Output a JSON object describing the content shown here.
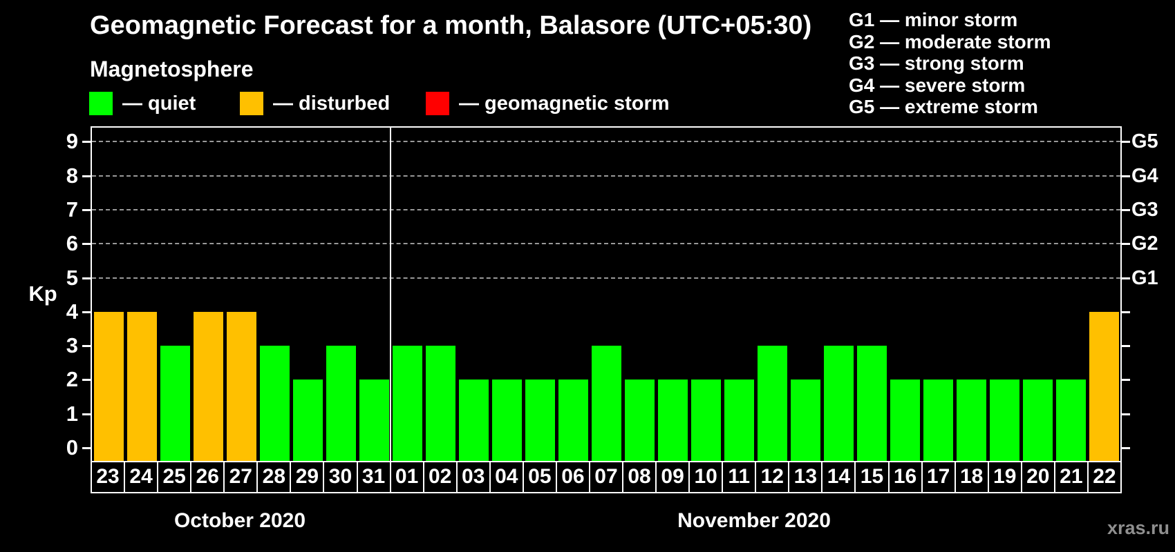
{
  "header": {
    "title": "Geomagnetic Forecast for a month, Balasore (UTC+05:30)",
    "subtitle": "Magnetosphere"
  },
  "legend": [
    {
      "label": "— quiet",
      "status": "quiet",
      "color": "#00ff00"
    },
    {
      "label": "— disturbed",
      "status": "disturbed",
      "color": "#ffc000"
    },
    {
      "label": "— geomagnetic storm",
      "status": "storm",
      "color": "#ff0000"
    }
  ],
  "storm_scale": [
    "G1 — minor storm",
    "G2 — moderate storm",
    "G3 — strong storm",
    "G4 — severe storm",
    "G5 — extreme storm"
  ],
  "axes": {
    "kp_label": "Kp",
    "y_ticks": [
      "0",
      "1",
      "2",
      "3",
      "4",
      "5",
      "6",
      "7",
      "8",
      "9"
    ],
    "right_labels": [
      "G1",
      "G2",
      "G3",
      "G4",
      "G5"
    ]
  },
  "months": [
    {
      "label": "October 2020",
      "days": 9
    },
    {
      "label": "November 2020",
      "days": 22
    }
  ],
  "watermark": "xras.ru",
  "chart_data": {
    "type": "bar",
    "title": "Geomagnetic Forecast for a month, Balasore (UTC+05:30)",
    "subtitle": "Magnetosphere",
    "ylabel": "Kp",
    "ylim": [
      0,
      9
    ],
    "grid": "dashed horizontal at Kp 5-9 (G1-G5 levels)",
    "gridlines": [
      5,
      6,
      7,
      8,
      9
    ],
    "legend_position": "top-left",
    "categories": [
      "23",
      "24",
      "25",
      "26",
      "27",
      "28",
      "29",
      "30",
      "31",
      "01",
      "02",
      "03",
      "04",
      "05",
      "06",
      "07",
      "08",
      "09",
      "10",
      "11",
      "12",
      "13",
      "14",
      "15",
      "16",
      "17",
      "18",
      "19",
      "20",
      "21",
      "22"
    ],
    "values": [
      4,
      4,
      3,
      4,
      4,
      3,
      2,
      3,
      2,
      3,
      3,
      2,
      2,
      2,
      2,
      3,
      2,
      2,
      2,
      2,
      3,
      2,
      3,
      3,
      2,
      2,
      2,
      2,
      2,
      2,
      4
    ],
    "statuses": [
      "disturbed",
      "disturbed",
      "quiet",
      "disturbed",
      "disturbed",
      "quiet",
      "quiet",
      "quiet",
      "quiet",
      "quiet",
      "quiet",
      "quiet",
      "quiet",
      "quiet",
      "quiet",
      "quiet",
      "quiet",
      "quiet",
      "quiet",
      "quiet",
      "quiet",
      "quiet",
      "quiet",
      "quiet",
      "quiet",
      "quiet",
      "quiet",
      "quiet",
      "quiet",
      "quiet",
      "disturbed"
    ],
    "colors": {
      "quiet": "#00ff00",
      "disturbed": "#ffc000",
      "storm": "#ff0000"
    }
  }
}
